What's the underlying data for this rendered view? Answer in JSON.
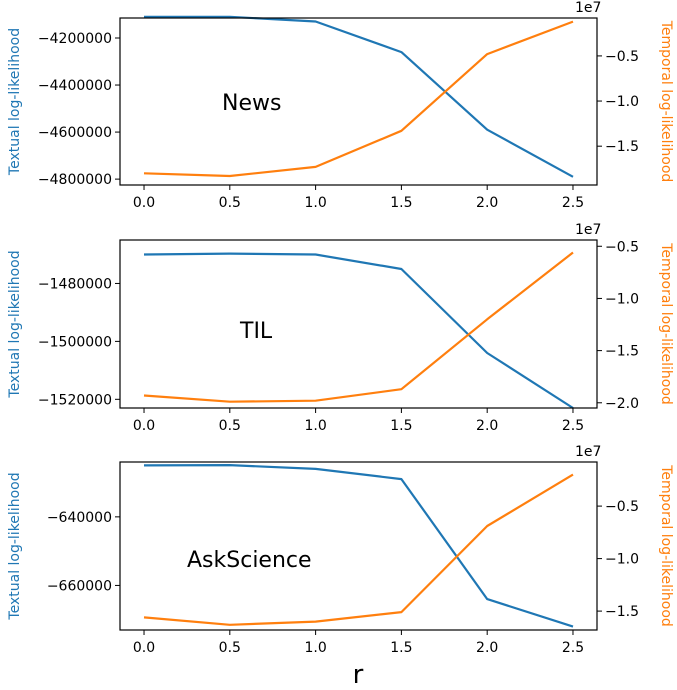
{
  "colors": {
    "textual": "#1f77b4",
    "temporal": "#ff7f0e"
  },
  "xlabel": "r",
  "chart_data": [
    {
      "type": "line",
      "annotation": "News",
      "x": [
        0.0,
        0.5,
        1.0,
        1.5,
        2.0,
        2.5
      ],
      "xticks": [
        "0.0",
        "0.5",
        "1.0",
        "1.5",
        "2.0",
        "2.5"
      ],
      "xlim": [
        -0.14,
        2.64
      ],
      "left_axis": {
        "label": "Textual log-likelihood",
        "ylim": [
          -4825000,
          -4115000
        ],
        "ticks": [
          -4800000,
          -4600000,
          -4400000,
          -4200000
        ],
        "tick_labels": [
          "−4800000",
          "−4600000",
          "−4400000",
          "−4200000"
        ]
      },
      "right_axis": {
        "label": "Temporal log-likelihood",
        "exponent": "1e7",
        "ylim": [
          -1.93,
          -0.08
        ],
        "ticks": [
          -1.5,
          -1.0,
          -0.5
        ],
        "tick_labels": [
          "−1.5",
          "−1.0",
          "−0.5"
        ]
      },
      "series": [
        {
          "name": "Textual log-likelihood",
          "axis": "left",
          "values": [
            -4110000,
            -4110000,
            -4130000,
            -4260000,
            -4590000,
            -4790000
          ]
        },
        {
          "name": "Temporal log-likelihood",
          "axis": "right",
          "values": [
            -1.8,
            -1.83,
            -1.73,
            -1.33,
            -0.48,
            -0.12
          ]
        }
      ]
    },
    {
      "type": "line",
      "annotation": "TIL",
      "x": [
        0.0,
        0.5,
        1.0,
        1.5,
        2.0,
        2.5
      ],
      "xticks": [
        "0.0",
        "0.5",
        "1.0",
        "1.5",
        "2.0",
        "2.5"
      ],
      "xlim": [
        -0.14,
        2.64
      ],
      "left_axis": {
        "label": "Textual log-likelihood",
        "ylim": [
          -1523000,
          -1465000
        ],
        "ticks": [
          -1520000,
          -1500000,
          -1480000
        ],
        "tick_labels": [
          "−1520000",
          "−1500000",
          "−1480000"
        ]
      },
      "right_axis": {
        "label": "Temporal log-likelihood",
        "exponent": "1e7",
        "ylim": [
          -2.05,
          -0.44
        ],
        "ticks": [
          -2.0,
          -1.5,
          -1.0,
          -0.5
        ],
        "tick_labels": [
          "−2.0",
          "−1.5",
          "−1.0",
          "−0.5"
        ]
      },
      "series": [
        {
          "name": "Textual log-likelihood",
          "axis": "left",
          "values": [
            -1470000,
            -1469700,
            -1470000,
            -1475000,
            -1504000,
            -1523000
          ]
        },
        {
          "name": "Temporal log-likelihood",
          "axis": "right",
          "values": [
            -1.93,
            -1.99,
            -1.98,
            -1.87,
            -1.2,
            -0.56
          ]
        }
      ]
    },
    {
      "type": "line",
      "annotation": "AskScience",
      "x": [
        0.0,
        0.5,
        1.0,
        1.5,
        2.0,
        2.5
      ],
      "xticks": [
        "0.0",
        "0.5",
        "1.0",
        "1.5",
        "2.0",
        "2.5"
      ],
      "xlim": [
        -0.14,
        2.64
      ],
      "left_axis": {
        "label": "Textual log-likelihood",
        "ylim": [
          -673000,
          -624000
        ],
        "ticks": [
          -660000,
          -640000
        ],
        "tick_labels": [
          "−660000",
          "−640000"
        ]
      },
      "right_axis": {
        "label": "Temporal log-likelihood",
        "exponent": "1e7",
        "ylim": [
          -1.68,
          -0.08
        ],
        "ticks": [
          -1.5,
          -1.0,
          -0.5
        ],
        "tick_labels": [
          "−1.5",
          "−1.0",
          "−0.5"
        ]
      },
      "series": [
        {
          "name": "Textual log-likelihood",
          "axis": "left",
          "values": [
            -625000,
            -624900,
            -626000,
            -629000,
            -664000,
            -672000
          ]
        },
        {
          "name": "Temporal log-likelihood",
          "axis": "right",
          "values": [
            -1.56,
            -1.63,
            -1.6,
            -1.51,
            -0.69,
            -0.2
          ]
        }
      ]
    }
  ]
}
